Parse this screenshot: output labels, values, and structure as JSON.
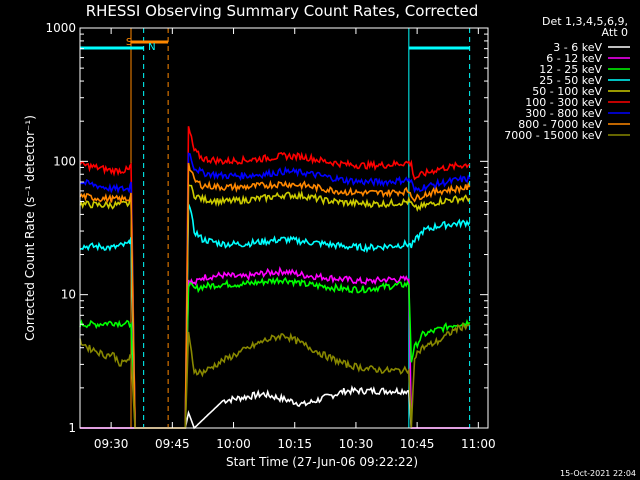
{
  "chart_data": {
    "type": "line",
    "title": "RHESSI Observing Summary Count Rates, Corrected",
    "xlabel": "Start Time (27-Jun-06 09:22:22)",
    "ylabel": "Corrected Count Rate (s⁻¹ detector⁻¹)",
    "x_unit": "minutes after 09:22:22",
    "xlim": [
      0,
      100
    ],
    "ylim": [
      1,
      1000
    ],
    "y_scale": "log",
    "x_ticks": [
      {
        "label": "09:30",
        "value": 7.63
      },
      {
        "label": "09:45",
        "value": 22.63
      },
      {
        "label": "10:00",
        "value": 37.63
      },
      {
        "label": "10:15",
        "value": 52.63
      },
      {
        "label": "10:30",
        "value": 67.63
      },
      {
        "label": "10:45",
        "value": 82.63
      },
      {
        "label": "11:00",
        "value": 97.63
      }
    ],
    "y_ticks": [
      {
        "label": "1",
        "value": 1
      },
      {
        "label": "10",
        "value": 10
      },
      {
        "label": "100",
        "value": 100
      },
      {
        "label": "1000",
        "value": 1000
      }
    ],
    "legend_header": [
      "Det 1,3,4,5,6,9,",
      "Att 0"
    ],
    "legend_position": "top-right",
    "timestamp": "15-Oct-2021 22:04",
    "series": [
      {
        "name": "3 - 6 keV",
        "color": "#ffffff",
        "x": [
          0,
          12.5,
          13.5,
          25.8,
          26.6,
          28,
          35,
          45,
          55,
          65,
          75,
          80.6,
          81.2,
          82,
          90,
          95.5
        ],
        "y": [
          1,
          1,
          1,
          1,
          1.3,
          1,
          1.6,
          1.8,
          1.5,
          1.9,
          1.9,
          1.9,
          1,
          1,
          1,
          1
        ]
      },
      {
        "name": "6 - 12 keV",
        "color": "#ff00ff",
        "x": [
          0,
          12.5,
          13.5,
          25.8,
          26.6,
          28,
          30,
          35,
          40,
          45,
          50,
          55,
          60,
          65,
          70,
          75,
          80.6,
          81.2,
          82,
          84,
          90,
          95.5
        ],
        "y": [
          1,
          1,
          1,
          1,
          13,
          12,
          13.5,
          14,
          13.5,
          14.5,
          15,
          14,
          13.5,
          13,
          12.5,
          13,
          13,
          1,
          1,
          1,
          1,
          1
        ]
      },
      {
        "name": "12 - 25 keV",
        "color": "#00ff00",
        "x": [
          0,
          4,
          8,
          12.5,
          13.5,
          25.8,
          26.6,
          28,
          30,
          35,
          40,
          45,
          50,
          55,
          60,
          65,
          70,
          75,
          80.6,
          81.2,
          82,
          84,
          88,
          92,
          95.5
        ],
        "y": [
          6,
          6,
          6.2,
          6,
          1,
          1,
          12,
          11,
          11.5,
          12,
          12,
          12.5,
          13,
          12,
          11.5,
          11,
          11,
          11.5,
          12,
          3.2,
          4,
          5,
          5.5,
          6,
          6.2
        ]
      },
      {
        "name": "25 - 50 keV",
        "color": "#00ffff",
        "x": [
          0,
          4,
          8,
          12,
          12.5,
          13.5,
          25.8,
          26.6,
          28,
          30,
          35,
          40,
          45,
          50,
          55,
          60,
          65,
          70,
          75,
          80.6,
          81.2,
          82,
          84,
          88,
          92,
          95.5
        ],
        "y": [
          23,
          23,
          22.5,
          24,
          27,
          1,
          1,
          50,
          30,
          26,
          24,
          24,
          25,
          26,
          25,
          24,
          23,
          22.5,
          23,
          24,
          23,
          25,
          30,
          33,
          34,
          35
        ]
      },
      {
        "name": "50 - 100 keV",
        "color": "#cccc00",
        "x": [
          0,
          4,
          8,
          12,
          12.5,
          13.5,
          25.8,
          26.6,
          28,
          30,
          35,
          40,
          45,
          50,
          55,
          60,
          65,
          70,
          75,
          80.6,
          81.2,
          82,
          84,
          88,
          92,
          95.5
        ],
        "y": [
          48,
          47,
          47,
          48,
          52,
          1,
          1,
          70,
          56,
          52,
          50,
          51,
          53,
          56,
          55,
          51,
          49,
          48,
          48,
          50,
          48,
          44,
          46,
          50,
          52,
          53
        ]
      },
      {
        "name": "100 - 300 keV",
        "color": "#ff0000",
        "x": [
          0,
          4,
          8,
          12,
          12.5,
          13.5,
          25.8,
          26.6,
          28,
          30,
          35,
          40,
          45,
          50,
          55,
          60,
          65,
          70,
          75,
          80.6,
          81.2,
          82,
          84,
          88,
          92,
          95.5
        ],
        "y": [
          95,
          90,
          85,
          86,
          95,
          1,
          1,
          180,
          120,
          105,
          100,
          102,
          105,
          110,
          108,
          100,
          95,
          93,
          94,
          98,
          95,
          75,
          80,
          88,
          92,
          95
        ]
      },
      {
        "name": "300 - 800 keV",
        "color": "#0000ff",
        "x": [
          0,
          4,
          8,
          12,
          12.5,
          13.5,
          25.8,
          26.6,
          28,
          30,
          35,
          40,
          45,
          50,
          55,
          60,
          65,
          70,
          75,
          80.6,
          81.2,
          82,
          84,
          88,
          92,
          95.5
        ],
        "y": [
          70,
          66,
          62,
          62,
          70,
          1,
          1,
          120,
          90,
          82,
          78,
          78,
          80,
          84,
          82,
          77,
          72,
          70,
          70,
          73,
          70,
          60,
          64,
          68,
          72,
          74
        ]
      },
      {
        "name": "800 - 7000 keV",
        "color": "#ff8800",
        "x": [
          0,
          4,
          8,
          12,
          12.5,
          13.5,
          25.8,
          26.6,
          28,
          30,
          35,
          40,
          45,
          50,
          55,
          60,
          65,
          70,
          75,
          80.6,
          81.2,
          82,
          84,
          88,
          92,
          95.5
        ],
        "y": [
          55,
          53,
          52,
          52,
          58,
          1,
          1,
          95,
          72,
          66,
          64,
          64,
          66,
          68,
          66,
          62,
          59,
          58,
          58,
          60,
          57,
          52,
          56,
          60,
          62,
          64
        ]
      },
      {
        "name": "7000 - 15000 keV",
        "color": "#888800",
        "x": [
          0,
          2,
          4,
          6,
          8,
          10,
          12,
          12.5,
          13.5,
          25.8,
          26.6,
          28,
          30,
          35,
          40,
          45,
          50,
          55,
          60,
          65,
          70,
          75,
          80.6,
          81.2,
          82,
          84,
          88,
          92,
          95.5
        ],
        "y": [
          4.5,
          4,
          3.8,
          3.5,
          3.6,
          3,
          3.3,
          3.5,
          1,
          1,
          5,
          2.7,
          2.6,
          3.2,
          3.8,
          4.5,
          5,
          4.2,
          3.5,
          3,
          2.8,
          2.7,
          2.7,
          1,
          3.5,
          4,
          4.5,
          5.5,
          6
        ]
      }
    ],
    "markers": [
      {
        "kind": "cyan_line",
        "x": 0
      },
      {
        "kind": "orange_line",
        "x": 12.5
      },
      {
        "kind": "cyan_dashed",
        "x": 15.6
      },
      {
        "kind": "orange_dashed",
        "x": 21.6
      },
      {
        "kind": "cyan_line",
        "x": 80.6
      },
      {
        "kind": "cyan_dashed",
        "x": 95.5
      }
    ],
    "top_bars": [
      {
        "color": "#00ffff",
        "x0": 0,
        "x1": 15.6,
        "label": ""
      },
      {
        "color": "#ff8800",
        "x0": 12.5,
        "x1": 21.6,
        "label": "S",
        "label_color": "#ff8800"
      },
      {
        "color": "#00ffff",
        "x0": 80.6,
        "x1": 95.5,
        "label": ""
      }
    ],
    "marker_labels": [
      {
        "text": "N",
        "x": 17.6,
        "color": "#00ffff"
      }
    ],
    "grid": false,
    "colors": {
      "background": "#000000",
      "axis": "#ffffff"
    }
  }
}
